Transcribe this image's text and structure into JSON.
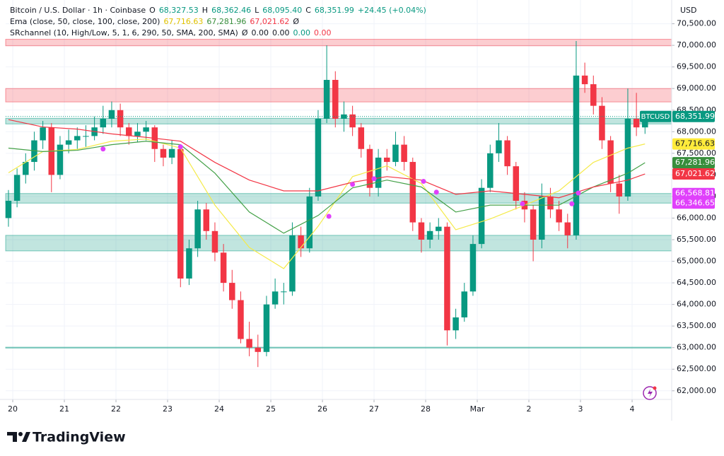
{
  "chart_data": {
    "type": "candlestick",
    "currency": "USD",
    "brand": "TradingView",
    "legend_rows": [
      [
        {
          "text": "Bitcoin / U.S. Dollar · 1h · Coinbase",
          "color": "#131722"
        },
        {
          "text": "O",
          "color": "#131722"
        },
        {
          "text": "68,327.53",
          "color": "#089981"
        },
        {
          "text": "H",
          "color": "#131722"
        },
        {
          "text": "68,362.46",
          "color": "#089981"
        },
        {
          "text": "L",
          "color": "#131722"
        },
        {
          "text": "68,095.40",
          "color": "#089981"
        },
        {
          "text": "C",
          "color": "#131722"
        },
        {
          "text": "68,351.99",
          "color": "#089981"
        },
        {
          "text": "+24.45 (+0.04%)",
          "color": "#089981"
        }
      ],
      [
        {
          "text": "Ema (close, 50, close, 100, close, 200)",
          "color": "#131722"
        },
        {
          "text": "67,716.63",
          "color": "#e0c200"
        },
        {
          "text": "67,281.96",
          "color": "#388e3c"
        },
        {
          "text": "67,021.62",
          "color": "#f23645"
        },
        {
          "text": "Ø",
          "color": "#131722"
        }
      ],
      [
        {
          "text": "SRchannel (10, High/Low, 5, 1, 6, 290, 50, SMA, 200, SMA)",
          "color": "#131722"
        },
        {
          "text": "Ø",
          "color": "#131722"
        },
        {
          "text": "0.00",
          "color": "#131722"
        },
        {
          "text": "0.00",
          "color": "#131722"
        },
        {
          "text": "0.00",
          "color": "#089981"
        },
        {
          "text": "0.00",
          "color": "#f23645"
        }
      ]
    ],
    "up_color": "#089981",
    "down_color": "#f23645",
    "x": [
      -2,
      2,
      6,
      10,
      14,
      18,
      22,
      26,
      30,
      34,
      38,
      42,
      46,
      50,
      54,
      58,
      62,
      66,
      70,
      74,
      78,
      82,
      86,
      90,
      94,
      98,
      102,
      106,
      110,
      114,
      118,
      122,
      126,
      130,
      134,
      138,
      142,
      146,
      150,
      154,
      158,
      162,
      166,
      170,
      174,
      178,
      182,
      186,
      190,
      194,
      198,
      202,
      206,
      210,
      214,
      218,
      222,
      226,
      230,
      234,
      238,
      242,
      246,
      250,
      254,
      258,
      262,
      266,
      270,
      274,
      278,
      282,
      286,
      290,
      294
    ],
    "open": [
      66000,
      66400,
      67000,
      67300,
      67800,
      68100,
      67000,
      67700,
      67800,
      67900,
      67900,
      68100,
      68300,
      68500,
      68100,
      67900,
      68000,
      68100,
      67600,
      67400,
      67600,
      64600,
      65300,
      66200,
      65700,
      65200,
      64500,
      64100,
      63200,
      63000,
      62900,
      64000,
      64300,
      64300,
      65600,
      65300,
      66500,
      68300,
      69200,
      68300,
      68400,
      68100,
      67600,
      66700,
      67400,
      67300,
      67700,
      67300,
      65900,
      65500,
      65700,
      65800,
      63400,
      63700,
      64300,
      65400,
      66700,
      67500,
      67800,
      67200,
      66400,
      66200,
      65500,
      66500,
      66200,
      65900,
      65600,
      69300,
      69100,
      68600,
      67800,
      66800,
      66500,
      68300,
      68100
    ],
    "high": [
      66650,
      67150,
      67500,
      68000,
      68250,
      68200,
      67900,
      68050,
      68100,
      68150,
      68350,
      68600,
      68700,
      68650,
      68200,
      68200,
      68250,
      68150,
      67700,
      67800,
      67700,
      65500,
      66400,
      66350,
      65900,
      65400,
      64800,
      64300,
      63600,
      63300,
      64200,
      64600,
      64500,
      65900,
      65800,
      66700,
      68500,
      70000,
      69400,
      68700,
      68600,
      68200,
      67700,
      67600,
      67600,
      68000,
      67900,
      67400,
      66000,
      65900,
      66000,
      65900,
      63900,
      64500,
      65600,
      66900,
      67700,
      68200,
      67900,
      67300,
      66600,
      66300,
      66800,
      66700,
      66400,
      66100,
      70100,
      69600,
      69300,
      68800,
      67900,
      67000,
      69000,
      68900,
      68400
    ],
    "low": [
      65800,
      66250,
      66800,
      67100,
      67600,
      66600,
      66900,
      67500,
      67600,
      67650,
      67800,
      67950,
      68100,
      67900,
      67700,
      67750,
      67800,
      67300,
      67200,
      67250,
      64400,
      64450,
      65100,
      65500,
      65000,
      64300,
      63900,
      63100,
      62800,
      62550,
      62800,
      63900,
      64000,
      64200,
      65100,
      65200,
      66400,
      68200,
      68100,
      68000,
      67900,
      67400,
      66500,
      66500,
      67100,
      67200,
      67100,
      65700,
      65200,
      65300,
      65500,
      63050,
      63200,
      63600,
      64200,
      65300,
      66600,
      67300,
      67000,
      66200,
      65900,
      65000,
      65300,
      66000,
      65700,
      65300,
      65500,
      68900,
      68400,
      67600,
      66600,
      66100,
      66400,
      67900,
      67950
    ],
    "close": [
      66400,
      67000,
      67300,
      67800,
      68100,
      67000,
      67700,
      67800,
      67900,
      67900,
      68100,
      68300,
      68500,
      68100,
      67900,
      68000,
      68100,
      67600,
      67400,
      67600,
      64600,
      65300,
      66200,
      65700,
      65200,
      64500,
      64100,
      63200,
      63000,
      62900,
      64000,
      64300,
      64300,
      65600,
      65300,
      66500,
      68300,
      69200,
      68300,
      68400,
      68100,
      67600,
      66700,
      67400,
      67300,
      67700,
      67300,
      65900,
      65500,
      65700,
      65800,
      63400,
      63700,
      64300,
      65400,
      66700,
      67500,
      67800,
      67200,
      66400,
      66200,
      65500,
      66500,
      66200,
      65900,
      65600,
      69300,
      69100,
      68600,
      67800,
      66800,
      66500,
      68300,
      68100,
      68351.99
    ],
    "series": [
      {
        "color": "#f5ea4a",
        "x": [
          -2,
          14,
          30,
          46,
          62,
          78,
          94,
          110,
          126,
          142,
          158,
          174,
          190,
          206,
          222,
          238,
          254,
          270,
          286,
          294
        ],
        "values": [
          67050,
          67540,
          67590,
          67780,
          67830,
          67620,
          66300,
          65320,
          64830,
          65810,
          66960,
          67210,
          66800,
          65730,
          65980,
          66300,
          66630,
          67290,
          67620,
          67716.63
        ]
      },
      {
        "color": "#43a047",
        "x": [
          -2,
          14,
          30,
          46,
          62,
          78,
          94,
          110,
          126,
          142,
          158,
          174,
          190,
          206,
          222,
          238,
          254,
          270,
          286,
          294
        ],
        "values": [
          67620,
          67540,
          67570,
          67700,
          67780,
          67700,
          67040,
          66140,
          65650,
          66060,
          66700,
          66880,
          66720,
          66140,
          66300,
          66300,
          66300,
          66720,
          67040,
          67281.96
        ]
      },
      {
        "color": "#f23645",
        "x": [
          -2,
          14,
          30,
          46,
          62,
          78,
          94,
          110,
          126,
          142,
          158,
          174,
          190,
          206,
          222,
          238,
          254,
          270,
          286,
          294
        ],
        "values": [
          68280,
          68110,
          68060,
          67950,
          67870,
          67780,
          67290,
          66880,
          66630,
          66630,
          66830,
          66960,
          66880,
          66550,
          66630,
          66550,
          66470,
          66720,
          66880,
          67021.62
        ]
      }
    ],
    "markers": {
      "color": "#e040fb",
      "x": [
        42,
        78,
        147,
        158,
        168,
        191,
        197,
        237,
        260,
        263
      ],
      "values": [
        67600,
        67650,
        66040,
        66780,
        66910,
        66850,
        66600,
        66330,
        66330,
        66580
      ]
    },
    "zones": [
      {
        "from": 69990,
        "to": 70140,
        "color": "#f23645"
      },
      {
        "from": 68690,
        "to": 69000,
        "color": "#f23645"
      },
      {
        "from": 68180,
        "to": 68310,
        "color": "#089981"
      },
      {
        "from": 66346.65,
        "to": 66568.81,
        "color": "#089981"
      },
      {
        "from": 65240,
        "to": 65600,
        "color": "#089981"
      },
      {
        "from": 62990,
        "to": 63010,
        "color": "#089981"
      }
    ],
    "price_labels": [
      {
        "name": "BTCUSD",
        "value": 68351.99,
        "label": "68,351.99",
        "color": "#089981"
      },
      {
        "value": 67716.63,
        "label": "67,716.63",
        "color": "#ffeb3b"
      },
      {
        "value": 67281.96,
        "label": "67,281.96",
        "color": "#388e3c"
      },
      {
        "value": 67021.62,
        "label": "67,021.62",
        "color": "#f23645"
      },
      {
        "value": 66568.81,
        "label": "66,568.81",
        "color": "#e040fb"
      },
      {
        "value": 66346.65,
        "label": "66,346.65",
        "color": "#e040fb"
      }
    ],
    "xlim": [
      -3.3,
      306.4
    ],
    "xticks": [
      {
        "value": 0,
        "label": "20"
      },
      {
        "value": 24,
        "label": "21"
      },
      {
        "value": 48,
        "label": "22"
      },
      {
        "value": 72,
        "label": "23"
      },
      {
        "value": 96,
        "label": "24"
      },
      {
        "value": 120,
        "label": "25"
      },
      {
        "value": 144,
        "label": "26"
      },
      {
        "value": 168,
        "label": "27"
      },
      {
        "value": 192,
        "label": "28"
      },
      {
        "value": 216,
        "label": "Mar"
      },
      {
        "value": 240,
        "label": "2"
      },
      {
        "value": 264,
        "label": "3"
      },
      {
        "value": 288,
        "label": "4"
      }
    ],
    "ylim": [
      61800,
      71050
    ],
    "yticks": [
      {
        "value": 62000,
        "label": "62,000.00"
      },
      {
        "value": 62500,
        "label": "62,500.00"
      },
      {
        "value": 63000,
        "label": "63,000.00"
      },
      {
        "value": 63500,
        "label": "63,500.00"
      },
      {
        "value": 64000,
        "label": "64,000.00"
      },
      {
        "value": 64500,
        "label": "64,500.00"
      },
      {
        "value": 65000,
        "label": "65,000.00"
      },
      {
        "value": 65500,
        "label": "65,500.00"
      },
      {
        "value": 66000,
        "label": "66,000.00"
      },
      {
        "value": 66500,
        "label": "66,500.00"
      },
      {
        "value": 67000,
        "label": "67,000.00"
      },
      {
        "value": 67500,
        "label": "67,500.00"
      },
      {
        "value": 68000,
        "label": "68,000.00"
      },
      {
        "value": 68500,
        "label": "68,500.00"
      },
      {
        "value": 69000,
        "label": "69,000.00"
      },
      {
        "value": 69500,
        "label": "69,500.00"
      },
      {
        "value": 70000,
        "label": "70,000.00"
      },
      {
        "value": 70500,
        "label": "70,500.00"
      }
    ],
    "grid": true
  }
}
